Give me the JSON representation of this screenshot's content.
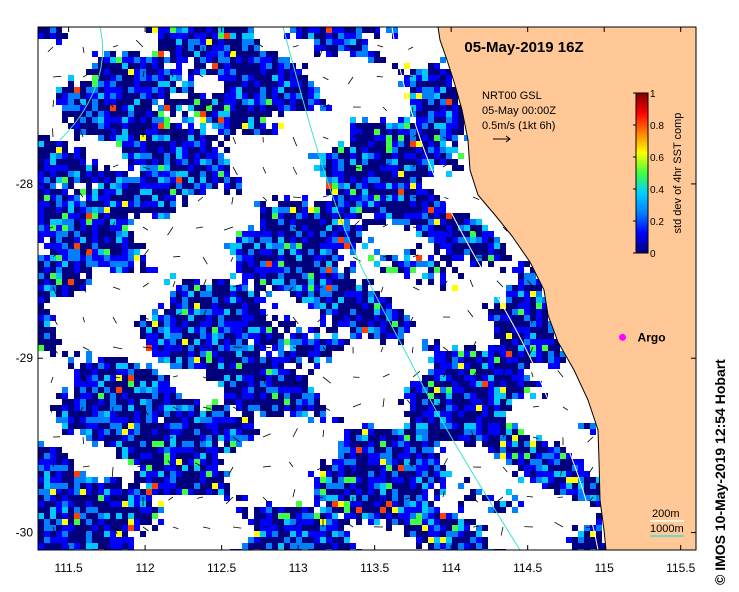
{
  "map": {
    "title": "05-May-2019 16Z",
    "x_axis": {
      "ticks": [
        111.5,
        112,
        112.5,
        113,
        113.5,
        114,
        114.5,
        115,
        115.5
      ],
      "tick_labels": [
        "111.5",
        "112",
        "112.5",
        "113",
        "113.5",
        "114",
        "114.5",
        "115",
        "115.5"
      ],
      "range": [
        111.3,
        115.6
      ]
    },
    "y_axis": {
      "ticks": [
        -28,
        -29,
        -30
      ],
      "tick_labels": [
        "-28",
        "-29",
        "-30"
      ],
      "range": [
        -30.1,
        -27.1
      ]
    },
    "colorbar": {
      "label": "std dev of 4hr SST comp",
      "ticks": [
        0,
        0.2,
        0.4,
        0.6,
        0.8,
        1
      ],
      "tick_labels": [
        "0",
        "0.2",
        "0.4",
        "0.6",
        "0.8",
        "1"
      ],
      "range": [
        0,
        1
      ],
      "colors": [
        "#00007f",
        "#0000ff",
        "#0080ff",
        "#00d0ff",
        "#40ff40",
        "#ffff00",
        "#ff8000",
        "#ff0000",
        "#7f0000"
      ]
    },
    "current_legend": {
      "line1": "NRT00 GSL",
      "line2": "05-May 00:00Z",
      "line3": "0.5m/s (1kt 6h)"
    },
    "argo": {
      "label": "Argo",
      "lon": 115.12,
      "lat": -28.88,
      "color": "#ff00ff"
    },
    "depth_legend": {
      "items": [
        {
          "label": "200m",
          "color": "#ffffff"
        },
        {
          "label": "1000m",
          "color": "#40e0d0"
        }
      ]
    },
    "land_color": "#ffc896",
    "credit": "© IMOS 10-May-2019 12:54 Hobart"
  }
}
